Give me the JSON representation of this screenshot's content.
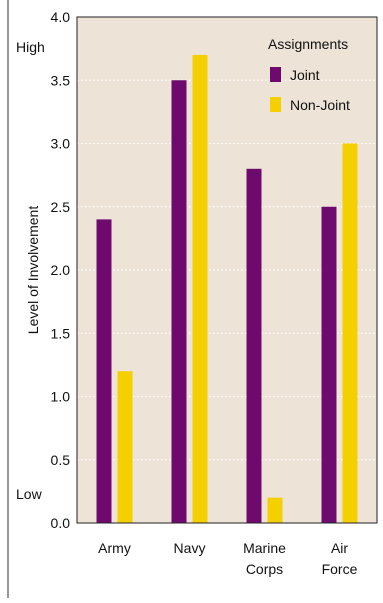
{
  "chart_data": {
    "type": "bar",
    "categories": [
      "Army",
      "Navy",
      "Marine Corps",
      "Air Force"
    ],
    "category_label_lines": [
      [
        "Army"
      ],
      [
        "Navy"
      ],
      [
        "Marine",
        "Corps"
      ],
      [
        "Air",
        "Force"
      ]
    ],
    "series": [
      {
        "name": "Joint",
        "values": [
          2.4,
          3.5,
          2.8,
          2.5
        ],
        "color": "#6e0a6e"
      },
      {
        "name": "Non-Joint",
        "values": [
          1.2,
          3.7,
          0.2,
          3.0
        ],
        "color": "#f5d000"
      }
    ],
    "ylabel": "Level of Involvement",
    "ylim": [
      0,
      4.0
    ],
    "yticks": [
      "0.0",
      "0.5",
      "1.0",
      "1.5",
      "2.0",
      "2.5",
      "3.0",
      "3.5",
      "4.0"
    ],
    "scale_labels": {
      "high": "High",
      "low": "Low"
    },
    "legend": {
      "title": "Assignments",
      "position": "top-right"
    },
    "grid": "horizontal dotted",
    "plot_background": "#ede3d6"
  }
}
